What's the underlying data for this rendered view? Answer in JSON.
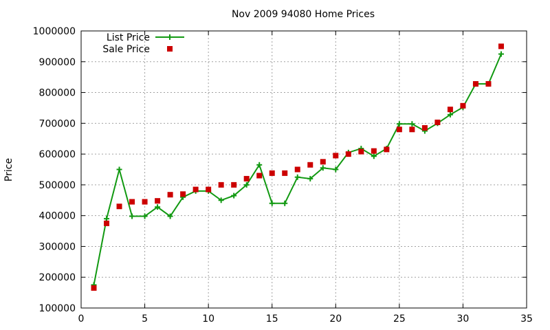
{
  "chart_data": {
    "type": "line",
    "title": "Nov 2009 94080 Home Prices",
    "xlabel": "",
    "ylabel": "Price",
    "xlim": [
      0,
      35
    ],
    "ylim": [
      100000,
      1000000
    ],
    "x_ticks": [
      0,
      5,
      10,
      15,
      20,
      25,
      30,
      35
    ],
    "y_ticks": [
      100000,
      200000,
      300000,
      400000,
      500000,
      600000,
      700000,
      800000,
      900000,
      1000000
    ],
    "grid": true,
    "legend_position": "top-left",
    "x": [
      1,
      2,
      3,
      4,
      5,
      6,
      7,
      8,
      9,
      10,
      11,
      12,
      13,
      14,
      15,
      16,
      17,
      18,
      19,
      20,
      21,
      22,
      23,
      24,
      25,
      26,
      27,
      28,
      29,
      30,
      31,
      32,
      33
    ],
    "series": [
      {
        "name": "List Price",
        "style": "line-with-plus-markers",
        "color": "#119911",
        "values": [
          175000,
          390000,
          550000,
          398000,
          398000,
          428000,
          398000,
          460000,
          480000,
          480000,
          450000,
          465000,
          500000,
          565000,
          440000,
          440000,
          525000,
          520000,
          555000,
          550000,
          605000,
          618000,
          593000,
          618000,
          698000,
          698000,
          675000,
          700000,
          728000,
          752000,
          828000,
          828000,
          925000
        ]
      },
      {
        "name": "Sale Price",
        "style": "square-markers",
        "color": "#cc0000",
        "values": [
          165000,
          375000,
          430000,
          445000,
          445000,
          448000,
          468000,
          470000,
          485000,
          485000,
          500000,
          500000,
          520000,
          530000,
          538000,
          538000,
          550000,
          565000,
          575000,
          595000,
          600000,
          608000,
          610000,
          615000,
          680000,
          680000,
          685000,
          703000,
          745000,
          757000,
          828000,
          828000,
          950000
        ]
      }
    ]
  }
}
